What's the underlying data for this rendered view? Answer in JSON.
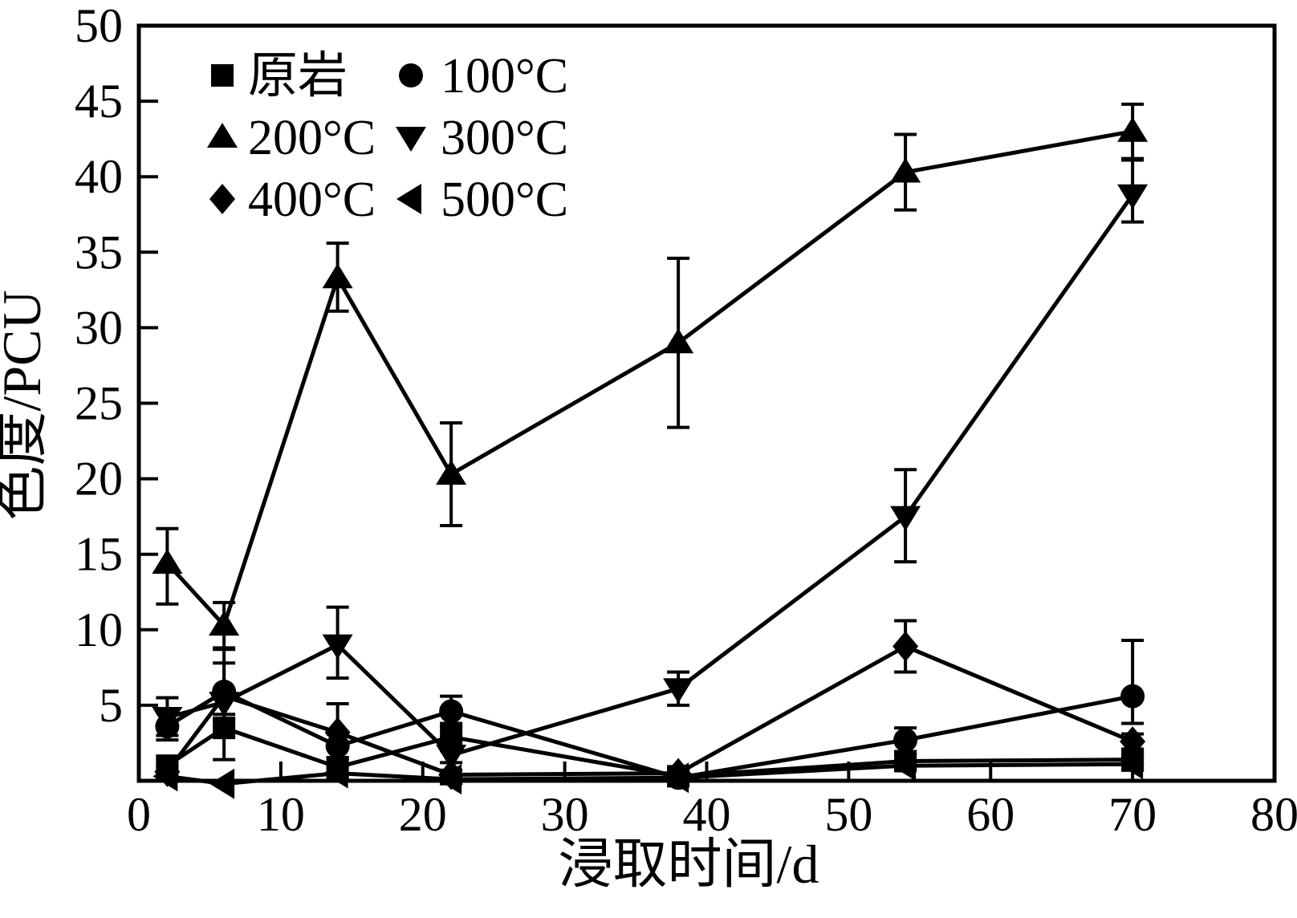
{
  "figure": {
    "background": "#ffffff",
    "ink": "#000000"
  },
  "chart_data": {
    "type": "line",
    "title": "",
    "xlabel": "浸取时间/d",
    "ylabel": "色度/PCU",
    "xlim": [
      0,
      80
    ],
    "ylim": [
      0,
      50
    ],
    "x_ticks": [
      0,
      10,
      20,
      30,
      40,
      50,
      60,
      70,
      80
    ],
    "y_ticks": [
      5,
      10,
      15,
      20,
      25,
      30,
      35,
      40,
      45,
      50
    ],
    "grid": false,
    "legend_position": "top-left-inside",
    "legend_columns": 2,
    "x": [
      2,
      6,
      14,
      22,
      38,
      54,
      70
    ],
    "series": [
      {
        "name": "原岩",
        "marker": "square",
        "values": [
          1.0,
          3.5,
          0.9,
          2.9,
          0.3,
          1.3,
          1.4
        ],
        "err_up": [
          0.5,
          2.0,
          0.6,
          0.9,
          0.2,
          0.4,
          0.3
        ],
        "err_down": [
          0.5,
          2.1,
          0.6,
          0.9,
          0.2,
          0.4,
          0.3
        ]
      },
      {
        "name": "100°C",
        "marker": "circle",
        "values": [
          3.6,
          5.9,
          2.3,
          4.6,
          0.2,
          2.7,
          5.6
        ],
        "err_up": [
          0.9,
          2.9,
          0.8,
          1.0,
          0.2,
          0.8,
          3.7
        ],
        "err_down": [
          0.9,
          1.5,
          0.8,
          1.0,
          0.2,
          0.8,
          1.8
        ]
      },
      {
        "name": "200°C",
        "marker": "triangle-up",
        "values": [
          14.4,
          10.3,
          33.3,
          20.3,
          29.0,
          40.3,
          43.0
        ],
        "err_up": [
          2.3,
          1.5,
          2.3,
          3.4,
          5.6,
          2.5,
          1.8
        ],
        "err_down": [
          2.7,
          1.6,
          2.2,
          3.4,
          5.6,
          2.5,
          1.8
        ]
      },
      {
        "name": "300°C",
        "marker": "triangle-down",
        "values": [
          4.2,
          5.2,
          9.0,
          1.7,
          6.1,
          17.5,
          38.8
        ],
        "err_up": [
          1.3,
          0,
          2.5,
          0.5,
          1.1,
          3.1,
          2.3
        ],
        "err_down": [
          1.2,
          0,
          2.2,
          0.5,
          1.1,
          3.0,
          1.8
        ]
      },
      {
        "name": "400°C",
        "marker": "diamond",
        "values": [
          0.6,
          5.6,
          3.2,
          0.4,
          0.5,
          8.9,
          2.6
        ],
        "err_up": [
          0.4,
          2.2,
          1.9,
          0.3,
          0.3,
          1.7,
          0.5
        ],
        "err_down": [
          0.4,
          1.5,
          1.0,
          0.3,
          0.3,
          1.7,
          0.5
        ]
      },
      {
        "name": "500°C",
        "marker": "triangle-left",
        "values": [
          0.3,
          -0.2,
          0.5,
          0.1,
          0.2,
          1.0,
          1.1
        ],
        "err_up": [
          0.3,
          0,
          0.4,
          0.3,
          0.2,
          0.3,
          0.4
        ],
        "err_down": [
          0.3,
          0,
          0.4,
          0.3,
          0.2,
          0.3,
          0.4
        ]
      }
    ]
  }
}
